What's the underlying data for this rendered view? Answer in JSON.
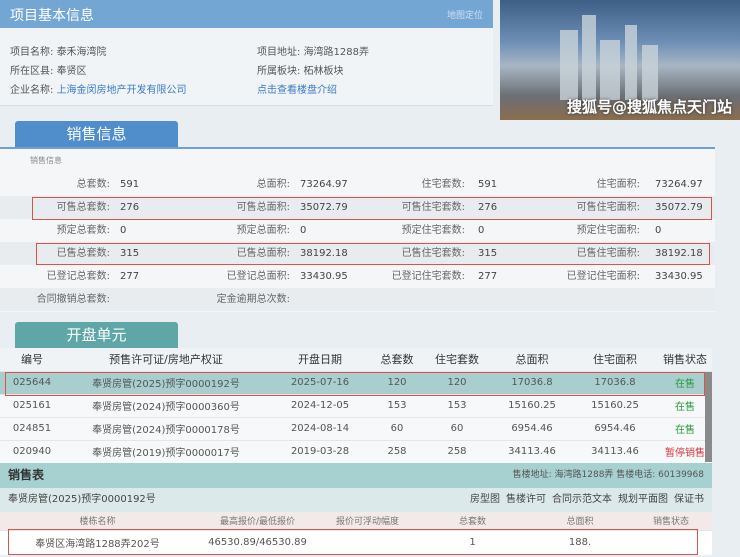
{
  "project_info": {
    "title": "项目基本信息",
    "map_link": "地图定位",
    "name_label": "项目名称:",
    "name": "泰禾海湾院",
    "district_label": "所在区县:",
    "district": "奉贤区",
    "company_label": "企业名称:",
    "company": "上海金闵房地产开发有限公司",
    "address_label": "项目地址:",
    "address": "海湾路1288弄",
    "block_label": "所属板块:",
    "block": "柘林板块",
    "intro_link": "点击查看楼盘介绍"
  },
  "sales_info": {
    "tab": "销售信息",
    "caption": "销售信息",
    "rows": [
      [
        [
          "总套数:",
          "591"
        ],
        [
          "总面积:",
          "73264.97"
        ],
        [
          "住宅套数:",
          "591"
        ],
        [
          "住宅面积:",
          "73264.97"
        ]
      ],
      [
        [
          "可售总套数:",
          "276"
        ],
        [
          "可售总面积:",
          "35072.79"
        ],
        [
          "可售住宅套数:",
          "276"
        ],
        [
          "可售住宅面积:",
          "35072.79"
        ]
      ],
      [
        [
          "预定总套数:",
          "0"
        ],
        [
          "预定总面积:",
          "0"
        ],
        [
          "预定住宅套数:",
          "0"
        ],
        [
          "预定住宅面积:",
          "0"
        ]
      ],
      [
        [
          "已售总套数:",
          "315"
        ],
        [
          "已售总面积:",
          "38192.18"
        ],
        [
          "已售住宅套数:",
          "315"
        ],
        [
          "已售住宅面积:",
          "38192.18"
        ]
      ],
      [
        [
          "已登记总套数:",
          "277"
        ],
        [
          "已登记总面积:",
          "33430.95"
        ],
        [
          "已登记住宅套数:",
          "277"
        ],
        [
          "已登记住宅面积:",
          "33430.95"
        ]
      ],
      [
        [
          "合同撤销总套数:",
          ""
        ],
        [
          "定金逾期总次数:",
          ""
        ],
        [
          "",
          ""
        ],
        [
          "",
          ""
        ]
      ]
    ]
  },
  "units": {
    "tab": "开盘单元",
    "headers": [
      "编号",
      "预售许可证/房地产权证",
      "开盘日期",
      "总套数",
      "住宅套数",
      "总面积",
      "住宅面积",
      "销售状态"
    ],
    "rows": [
      [
        "025644",
        "奉贤房管(2025)预字0000192号",
        "2025-07-16",
        "120",
        "120",
        "17036.8",
        "17036.8",
        "在售"
      ],
      [
        "025161",
        "奉贤房管(2024)预字0000360号",
        "2024-12-05",
        "153",
        "153",
        "15160.25",
        "15160.25",
        "在售"
      ],
      [
        "024851",
        "奉贤房管(2024)预字0000178号",
        "2024-08-14",
        "60",
        "60",
        "6954.46",
        "6954.46",
        "在售"
      ],
      [
        "020940",
        "奉贤房管(2019)预字0000017号",
        "2019-03-28",
        "258",
        "258",
        "34113.46",
        "34113.46",
        "暂停销售"
      ]
    ]
  },
  "sales_table": {
    "title": "销售表",
    "contact": "售楼地址: 海湾路1288弄 售楼电话: 60139968",
    "permit": "奉贤房管(2025)预字0000192号",
    "links": [
      "房型图",
      "售楼许可",
      "合同示范文本",
      "规划平面图",
      "保证书"
    ],
    "headers": [
      "楼栋名称",
      "最高报价/最低报价",
      "报价可浮动幅度",
      "总套数",
      "总面积",
      "销售状态"
    ],
    "rows": [
      [
        "奉贤区海湾路1288弄202号",
        "46530.89/46530.89",
        "",
        "1",
        "188.",
        ""
      ]
    ]
  },
  "watermark": "搜狐号@搜狐焦点天门站",
  "colors": {
    "header_blue": "#74a6d3",
    "teal": "#5fa7a7",
    "on_sale": "#2b9a3e",
    "suspended": "#d9363e",
    "highlight": "#d9534f"
  }
}
